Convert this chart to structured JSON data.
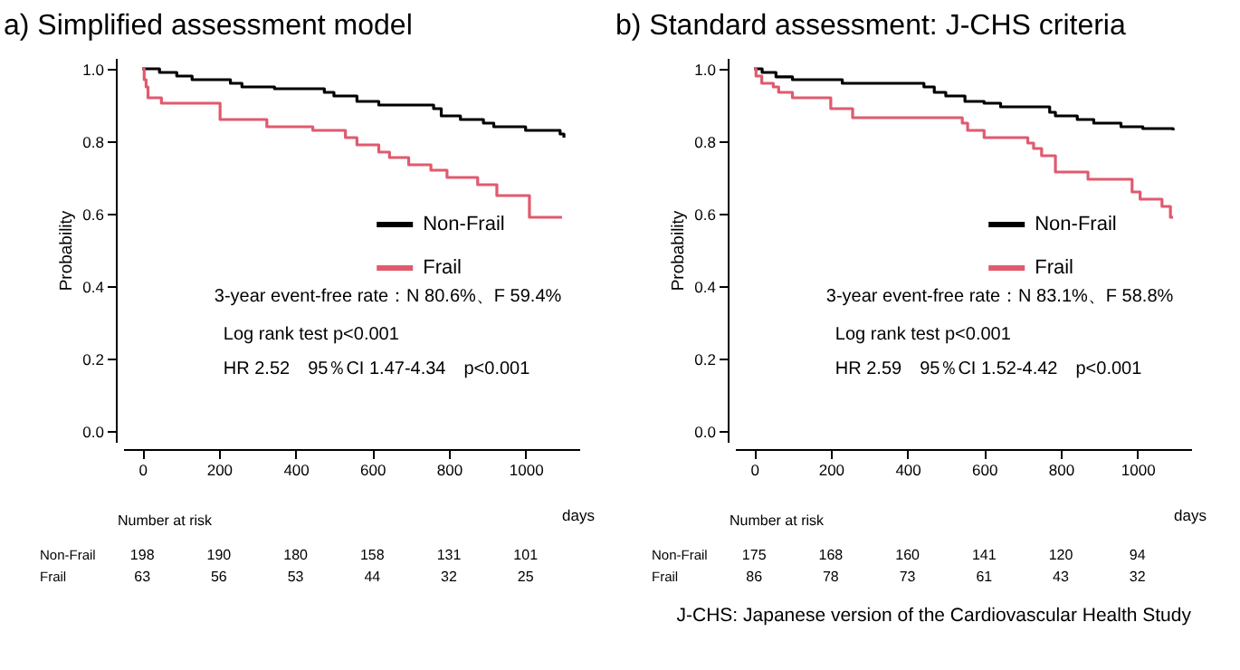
{
  "chart_data": [
    {
      "type": "step",
      "title": "a) Simplified assessment model",
      "xlabel": "days",
      "ylabel": "Probability",
      "xlim": [
        -50,
        1140
      ],
      "ylim": [
        -0.03,
        1.03
      ],
      "xticks": [
        0,
        200,
        400,
        600,
        800,
        1000
      ],
      "yticks": [
        {
          "value": 0,
          "label": "0.0"
        },
        {
          "value": 0.2,
          "label": "0.2"
        },
        {
          "value": 0.4,
          "label": "0.4"
        },
        {
          "value": 0.6,
          "label": "0.6"
        },
        {
          "value": 0.8,
          "label": "0.8"
        },
        {
          "value": 1,
          "label": "1.0"
        }
      ],
      "legend": "right",
      "series": [
        {
          "name": "Non-Frail",
          "color": "#000000",
          "x": [
            0,
            45,
            90,
            130,
            230,
            260,
            345,
            475,
            500,
            560,
            617,
            760,
            780,
            830,
            890,
            917,
            1000,
            1090,
            1100
          ],
          "values": [
            1.0,
            0.99,
            0.98,
            0.97,
            0.96,
            0.95,
            0.945,
            0.935,
            0.925,
            0.91,
            0.9,
            0.89,
            0.87,
            0.86,
            0.85,
            0.84,
            0.83,
            0.82,
            0.81
          ]
        },
        {
          "name": "Frail",
          "color": "#e05a6e",
          "x": [
            0,
            5,
            10,
            15,
            50,
            203,
            325,
            445,
            530,
            560,
            617,
            645,
            695,
            753,
            795,
            875,
            925,
            1010,
            1095
          ],
          "values": [
            1.0,
            0.97,
            0.95,
            0.92,
            0.905,
            0.86,
            0.84,
            0.83,
            0.81,
            0.79,
            0.77,
            0.755,
            0.735,
            0.72,
            0.7,
            0.68,
            0.65,
            0.59,
            0.59
          ]
        }
      ],
      "annotations": [
        "3-year event-free rate：N 80.6%、F 59.4%",
        "Log rank test p<0.001",
        "HR 2.52　95％CI 1.47-4.34　p<0.001",
        "Number at risk",
        "Non-Frail",
        "198",
        "190",
        "180",
        "158",
        "131",
        "101",
        "Frail",
        "63",
        "56",
        "53",
        "44",
        "32",
        "25"
      ]
    },
    {
      "type": "step",
      "title": "b) Standard assessment: J-CHS criteria",
      "xlabel": "days",
      "ylabel": "Probability",
      "xlim": [
        -50,
        1140
      ],
      "ylim": [
        -0.03,
        1.03
      ],
      "xticks": [
        0,
        200,
        400,
        600,
        800,
        1000
      ],
      "yticks": [
        {
          "value": 0,
          "label": "0.0"
        },
        {
          "value": 0.2,
          "label": "0.2"
        },
        {
          "value": 0.4,
          "label": "0.4"
        },
        {
          "value": 0.6,
          "label": "0.6"
        },
        {
          "value": 0.8,
          "label": "0.8"
        },
        {
          "value": 1,
          "label": "1.0"
        }
      ],
      "legend": "right",
      "series": [
        {
          "name": "Non-Frail",
          "color": "#000000",
          "x": [
            0,
            21,
            57,
            100,
            230,
            443,
            470,
            500,
            550,
            600,
            643,
            771,
            786,
            843,
            886,
            957,
            1014,
            1093
          ],
          "values": [
            1.0,
            0.99,
            0.978,
            0.97,
            0.96,
            0.95,
            0.935,
            0.925,
            0.91,
            0.905,
            0.895,
            0.88,
            0.87,
            0.86,
            0.85,
            0.84,
            0.835,
            0.83
          ]
        },
        {
          "name": "Frail",
          "color": "#e05a6e",
          "x": [
            0,
            5,
            20,
            50,
            64,
            100,
            200,
            257,
            543,
            557,
            600,
            714,
            729,
            750,
            786,
            871,
            986,
            1007,
            1064,
            1086,
            1093
          ],
          "values": [
            1.0,
            0.98,
            0.96,
            0.95,
            0.935,
            0.92,
            0.89,
            0.865,
            0.85,
            0.83,
            0.81,
            0.795,
            0.78,
            0.76,
            0.715,
            0.695,
            0.66,
            0.64,
            0.62,
            0.59,
            0.59
          ]
        }
      ],
      "annotations": [
        "3-year event-free rate：N 83.1%、F 58.8%",
        "Log rank test p<0.001",
        "HR 2.59　95％CI 1.52-4.42　p<0.001",
        "Number at risk",
        "Non-Frail",
        "175",
        "168",
        "160",
        "141",
        "120",
        "94",
        "Frail",
        "86",
        "78",
        "73",
        "61",
        "43",
        "32",
        "J-CHS: Japanese version of the Cardiovascular Health Study"
      ]
    }
  ]
}
